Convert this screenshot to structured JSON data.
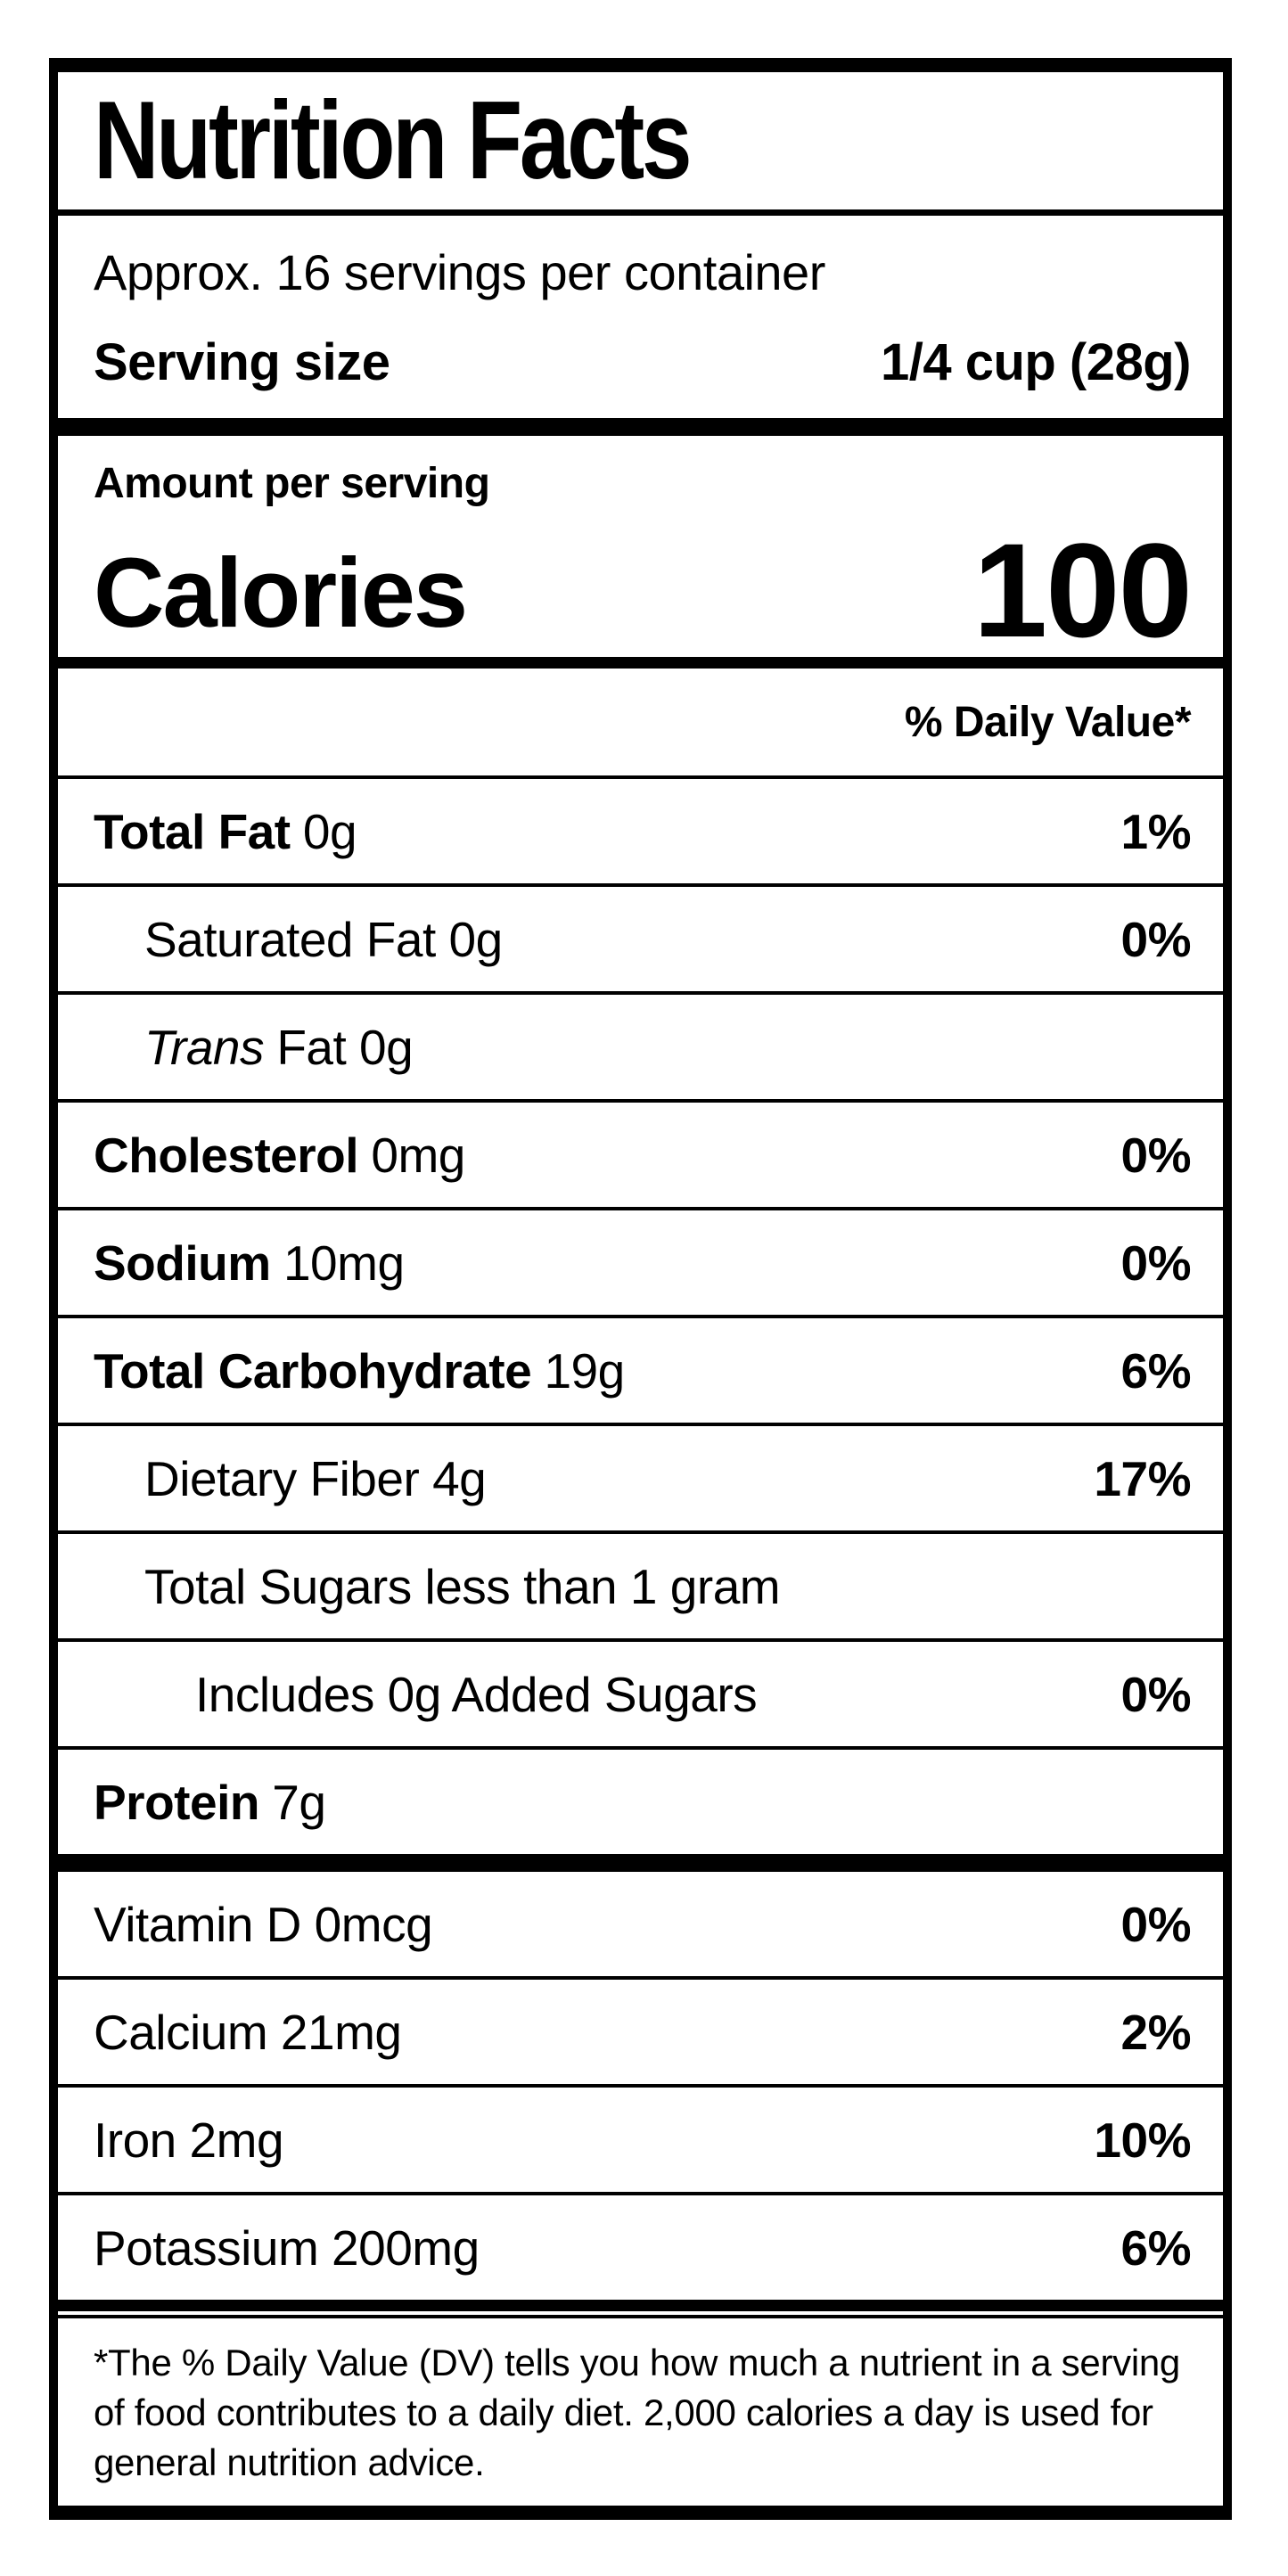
{
  "colors": {
    "background": "#ffffff",
    "text": "#000000",
    "rule": "#000000"
  },
  "label": {
    "title": "Nutrition Facts",
    "servings_per_container": "Approx. 16 servings per container",
    "serving_size_label": "Serving size",
    "serving_size_value": "1/4 cup (28g)",
    "amount_per_serving": "Amount per serving",
    "calories_label": "Calories",
    "calories_value": "100",
    "daily_value_header": "% Daily Value*",
    "rows": [
      {
        "bold": "Total Fat",
        "rest": "0g",
        "dv": "1%"
      },
      {
        "rest": "Saturated Fat 0g",
        "dv": "0%"
      },
      {
        "italic": "Trans",
        "rest": "Fat 0g",
        "dv": ""
      },
      {
        "bold": "Cholesterol",
        "rest": "0mg",
        "dv": "0%"
      },
      {
        "bold": "Sodium",
        "rest": "10mg",
        "dv": "0%"
      },
      {
        "bold": "Total Carbohydrate",
        "rest": "19g",
        "dv": "6%"
      },
      {
        "rest": "Dietary Fiber 4g",
        "dv": "17%"
      },
      {
        "rest": "Total Sugars less than 1 gram",
        "dv": ""
      },
      {
        "rest": "Includes 0g Added Sugars",
        "dv": "0%"
      },
      {
        "bold": "Protein",
        "rest": "7g",
        "dv": ""
      },
      {
        "rest": "Vitamin D 0mcg",
        "dv": "0%"
      },
      {
        "rest": "Calcium 21mg",
        "dv": "2%"
      },
      {
        "rest": "Iron 2mg",
        "dv": "10%"
      },
      {
        "rest": "Potassium 200mg",
        "dv": "6%"
      }
    ],
    "footnote": "*The % Daily Value (DV) tells you how much a nutrient in a serving of food contributes to a daily diet. 2,000 calories a day is used for general nutrition advice."
  }
}
